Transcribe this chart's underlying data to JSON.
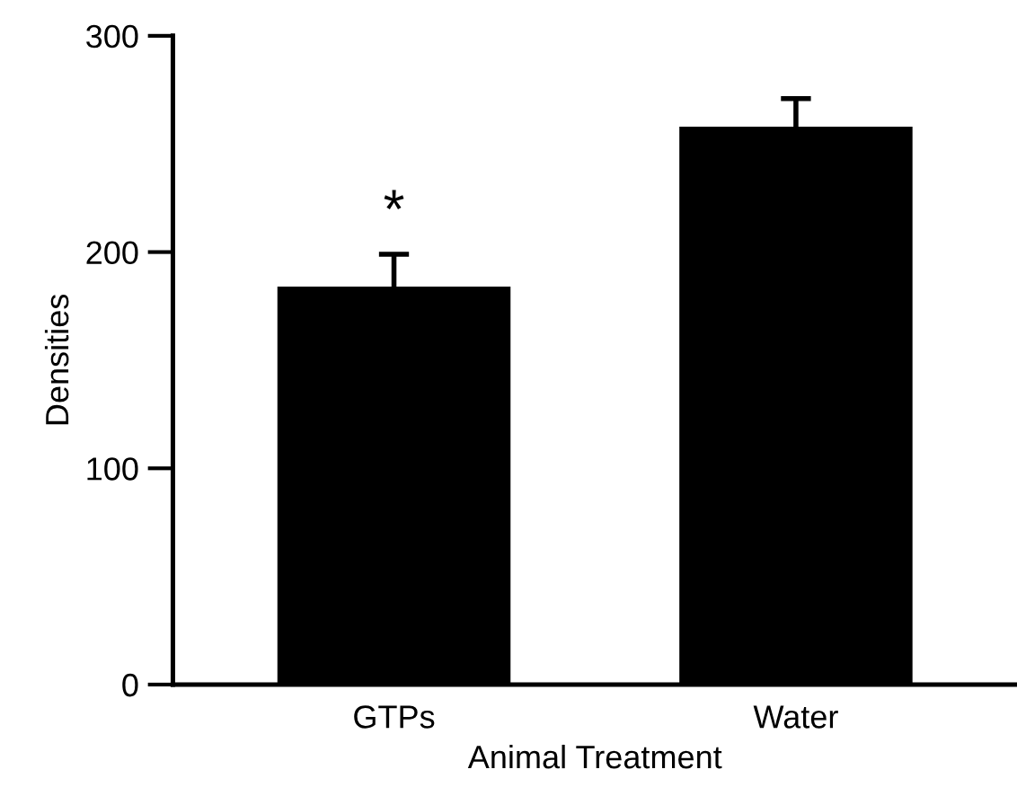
{
  "chart_data": {
    "type": "bar",
    "xlabel": "Animal Treatment",
    "ylabel": "Densities",
    "categories": [
      "GTPs",
      "Water"
    ],
    "values": [
      184,
      258
    ],
    "errors": [
      15,
      13
    ],
    "color": "#000000",
    "ylim": [
      0,
      300
    ],
    "yticks": [
      0,
      100,
      200,
      300
    ],
    "grid": false,
    "legend": false,
    "annotations": [
      "*"
    ]
  }
}
